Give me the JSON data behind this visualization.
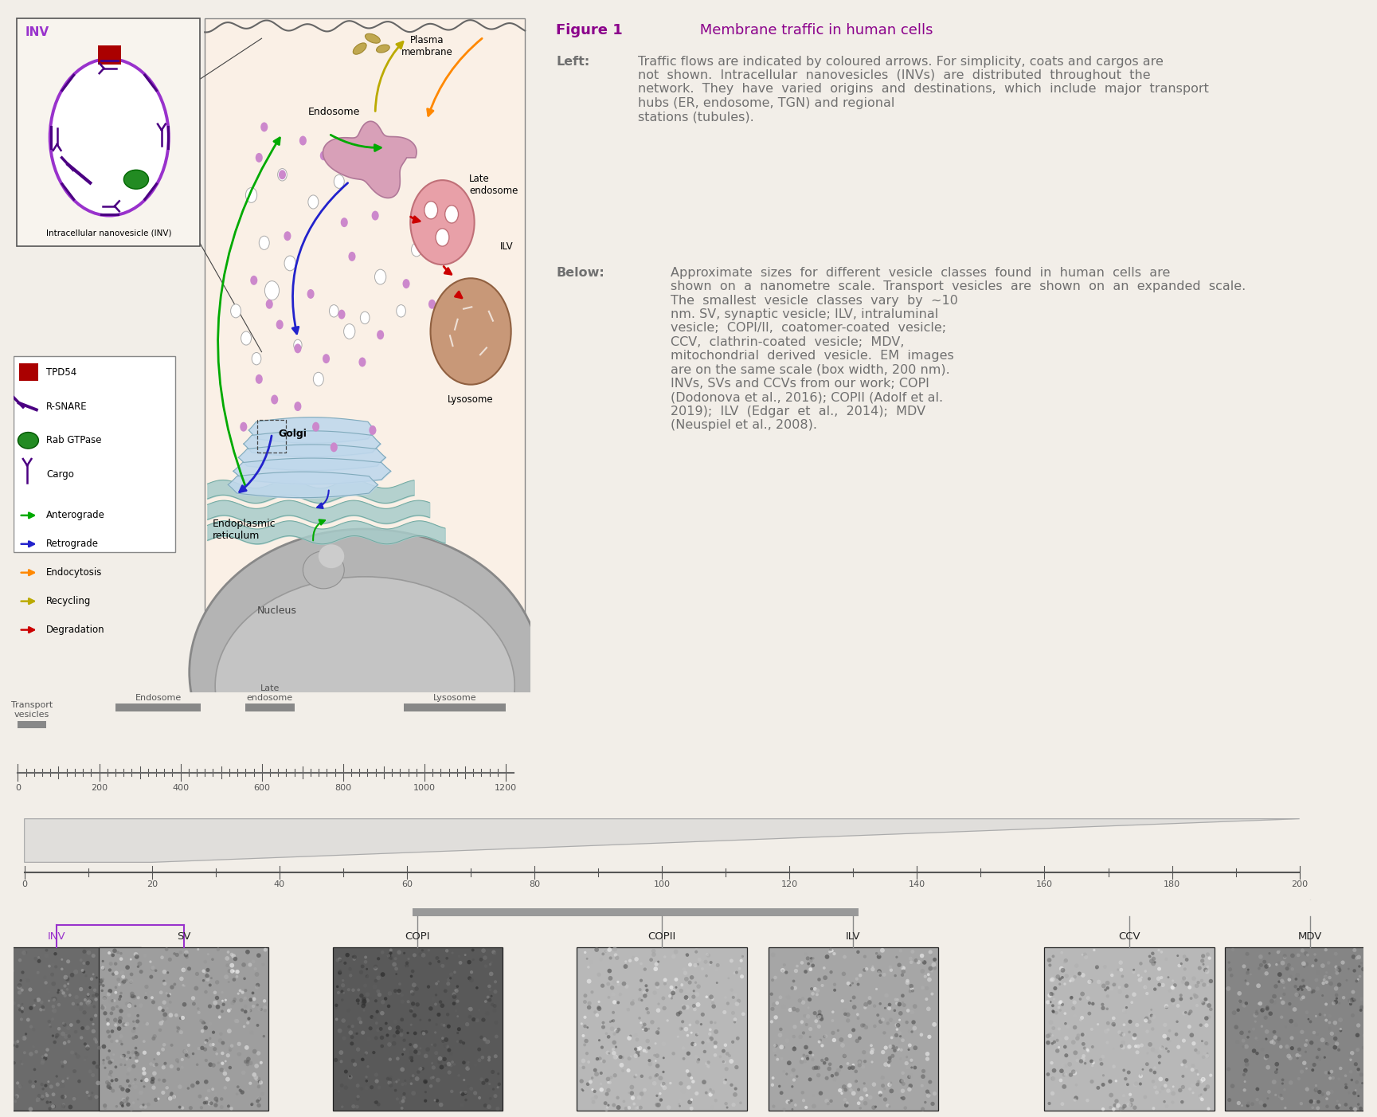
{
  "figure_title_bold": "Figure 1",
  "figure_title_rest": " Membrane traffic in human cells",
  "title_color": "#8B008B",
  "body_text_color": "#707070",
  "bg_color": "#F2EEE8",
  "inv_box_bg": "#F5F0EA",
  "cell_bg": "#FAF0E6",
  "golgi_color": "#C0D8EC",
  "er_color": "#A8CCCA",
  "late_endosome_color": "#E8A0A8",
  "lysosome_color": "#C89878",
  "endosome_color": "#D8A0B8",
  "arrow_anterograde": "#00AA00",
  "arrow_retrograde": "#2222CC",
  "arrow_endocytosis": "#FF8800",
  "arrow_recycling": "#BBAA00",
  "arrow_degradation": "#CC0000",
  "inv_circle_color": "#9932CC",
  "inv_snare_color": "#4B0082",
  "inv_rab_color": "#228B22",
  "inv_tpd54_color": "#AA0000",
  "purple_dot_color": "#CC88CC",
  "white_vesicle_edge": "#AAAAAA",
  "scale_color": "#888888",
  "em_labels": [
    "INV",
    "SV",
    "COPI",
    "COPII",
    "ILV",
    "CCV",
    "MDV"
  ]
}
